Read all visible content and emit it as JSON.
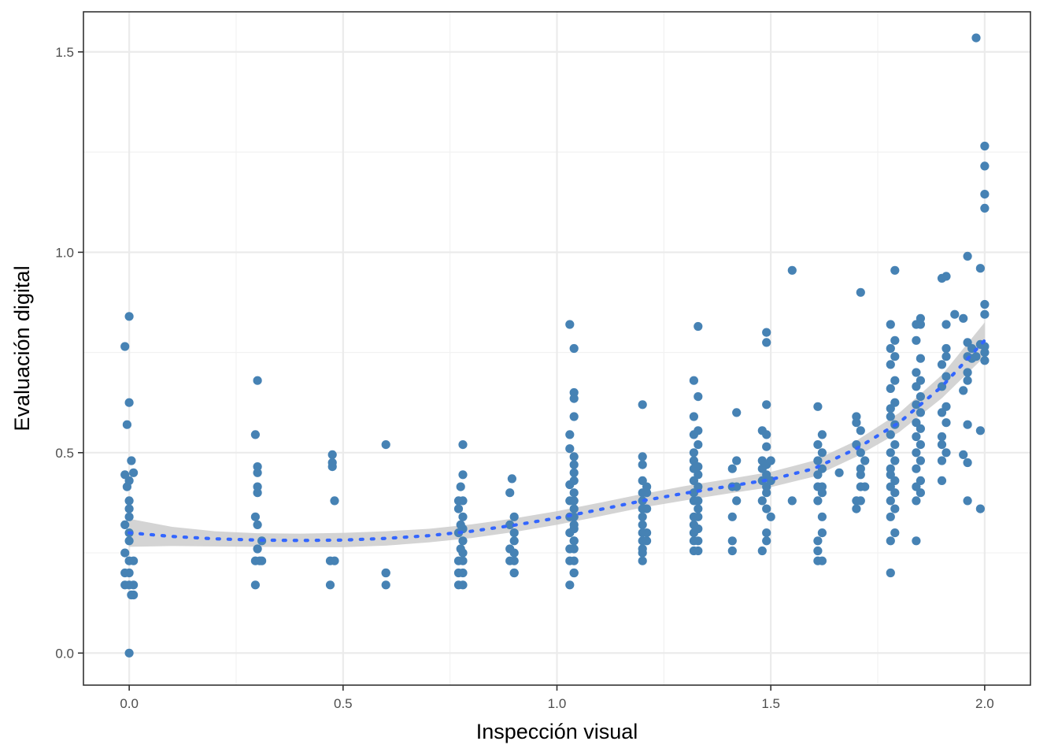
{
  "chart_data": {
    "type": "scatter",
    "title": "",
    "xlabel": "Inspección visual",
    "ylabel": "Evaluación digital",
    "xlim": [
      -0.107,
      2.107
    ],
    "ylim": [
      -0.08,
      1.6
    ],
    "x_ticks": [
      0.0,
      0.5,
      1.0,
      1.5,
      2.0
    ],
    "x_tick_labels": [
      "0.0",
      "0.5",
      "1.0",
      "1.5",
      "2.0"
    ],
    "y_ticks": [
      0.0,
      0.5,
      1.0,
      1.5
    ],
    "y_tick_labels": [
      "0.0",
      "0.5",
      "1.0",
      "1.5"
    ],
    "grid": true,
    "legend": "none",
    "point_color": "#4682b4",
    "smooth_color": "#3366ff",
    "ribbon_color": "#cccccc",
    "points": [
      [
        0.0,
        0.0
      ],
      [
        -0.01,
        0.17
      ],
      [
        0.0,
        0.17
      ],
      [
        0.01,
        0.17
      ],
      [
        0.0,
        0.2
      ],
      [
        -0.01,
        0.2
      ],
      [
        0.01,
        0.145
      ],
      [
        0.005,
        0.145
      ],
      [
        0.0,
        0.23
      ],
      [
        0.01,
        0.23
      ],
      [
        -0.01,
        0.25
      ],
      [
        0.0,
        0.28
      ],
      [
        0.0,
        0.3
      ],
      [
        -0.01,
        0.32
      ],
      [
        0.0,
        0.34
      ],
      [
        0.0,
        0.36
      ],
      [
        0.0,
        0.38
      ],
      [
        -0.005,
        0.415
      ],
      [
        0.0,
        0.43
      ],
      [
        -0.01,
        0.445
      ],
      [
        0.01,
        0.45
      ],
      [
        0.005,
        0.48
      ],
      [
        -0.005,
        0.57
      ],
      [
        0.0,
        0.625
      ],
      [
        -0.01,
        0.765
      ],
      [
        0.0,
        0.84
      ],
      [
        0.295,
        0.17
      ],
      [
        0.295,
        0.23
      ],
      [
        0.305,
        0.23
      ],
      [
        0.31,
        0.23
      ],
      [
        0.3,
        0.26
      ],
      [
        0.31,
        0.28
      ],
      [
        0.3,
        0.32
      ],
      [
        0.295,
        0.34
      ],
      [
        0.3,
        0.4
      ],
      [
        0.3,
        0.415
      ],
      [
        0.3,
        0.45
      ],
      [
        0.3,
        0.465
      ],
      [
        0.295,
        0.545
      ],
      [
        0.3,
        0.68
      ],
      [
        0.47,
        0.17
      ],
      [
        0.47,
        0.23
      ],
      [
        0.48,
        0.23
      ],
      [
        0.48,
        0.38
      ],
      [
        0.475,
        0.465
      ],
      [
        0.475,
        0.475
      ],
      [
        0.475,
        0.495
      ],
      [
        0.6,
        0.17
      ],
      [
        0.6,
        0.2
      ],
      [
        0.6,
        0.2
      ],
      [
        0.6,
        0.52
      ],
      [
        0.77,
        0.17
      ],
      [
        0.78,
        0.17
      ],
      [
        0.78,
        0.2
      ],
      [
        0.77,
        0.2
      ],
      [
        0.78,
        0.23
      ],
      [
        0.77,
        0.23
      ],
      [
        0.78,
        0.25
      ],
      [
        0.775,
        0.26
      ],
      [
        0.78,
        0.28
      ],
      [
        0.77,
        0.3
      ],
      [
        0.78,
        0.31
      ],
      [
        0.775,
        0.32
      ],
      [
        0.78,
        0.34
      ],
      [
        0.77,
        0.36
      ],
      [
        0.78,
        0.38
      ],
      [
        0.77,
        0.38
      ],
      [
        0.775,
        0.415
      ],
      [
        0.78,
        0.445
      ],
      [
        0.78,
        0.52
      ],
      [
        0.9,
        0.2
      ],
      [
        0.9,
        0.2
      ],
      [
        0.89,
        0.23
      ],
      [
        0.9,
        0.23
      ],
      [
        0.9,
        0.25
      ],
      [
        0.89,
        0.26
      ],
      [
        0.9,
        0.28
      ],
      [
        0.9,
        0.3
      ],
      [
        0.89,
        0.32
      ],
      [
        0.9,
        0.34
      ],
      [
        0.89,
        0.4
      ],
      [
        0.895,
        0.435
      ],
      [
        1.03,
        0.17
      ],
      [
        1.04,
        0.2
      ],
      [
        1.04,
        0.2
      ],
      [
        1.03,
        0.23
      ],
      [
        1.04,
        0.23
      ],
      [
        1.04,
        0.26
      ],
      [
        1.03,
        0.26
      ],
      [
        1.04,
        0.28
      ],
      [
        1.04,
        0.28
      ],
      [
        1.03,
        0.3
      ],
      [
        1.04,
        0.31
      ],
      [
        1.04,
        0.32
      ],
      [
        1.03,
        0.34
      ],
      [
        1.04,
        0.34
      ],
      [
        1.04,
        0.36
      ],
      [
        1.03,
        0.38
      ],
      [
        1.04,
        0.38
      ],
      [
        1.04,
        0.4
      ],
      [
        1.03,
        0.42
      ],
      [
        1.04,
        0.43
      ],
      [
        1.04,
        0.45
      ],
      [
        1.04,
        0.47
      ],
      [
        1.04,
        0.49
      ],
      [
        1.03,
        0.51
      ],
      [
        1.03,
        0.545
      ],
      [
        1.04,
        0.59
      ],
      [
        1.04,
        0.635
      ],
      [
        1.04,
        0.65
      ],
      [
        1.04,
        0.76
      ],
      [
        1.03,
        0.82
      ],
      [
        1.2,
        0.23
      ],
      [
        1.2,
        0.25
      ],
      [
        1.2,
        0.26
      ],
      [
        1.21,
        0.28
      ],
      [
        1.2,
        0.28
      ],
      [
        1.2,
        0.3
      ],
      [
        1.21,
        0.3
      ],
      [
        1.2,
        0.32
      ],
      [
        1.2,
        0.34
      ],
      [
        1.21,
        0.36
      ],
      [
        1.2,
        0.36
      ],
      [
        1.2,
        0.38
      ],
      [
        1.21,
        0.4
      ],
      [
        1.2,
        0.4
      ],
      [
        1.21,
        0.415
      ],
      [
        1.2,
        0.43
      ],
      [
        1.2,
        0.47
      ],
      [
        1.2,
        0.49
      ],
      [
        1.2,
        0.62
      ],
      [
        1.32,
        0.255
      ],
      [
        1.33,
        0.255
      ],
      [
        1.32,
        0.28
      ],
      [
        1.33,
        0.28
      ],
      [
        1.32,
        0.3
      ],
      [
        1.33,
        0.31
      ],
      [
        1.32,
        0.32
      ],
      [
        1.33,
        0.34
      ],
      [
        1.32,
        0.34
      ],
      [
        1.33,
        0.36
      ],
      [
        1.32,
        0.38
      ],
      [
        1.33,
        0.38
      ],
      [
        1.32,
        0.4
      ],
      [
        1.33,
        0.415
      ],
      [
        1.32,
        0.43
      ],
      [
        1.33,
        0.445
      ],
      [
        1.32,
        0.46
      ],
      [
        1.33,
        0.465
      ],
      [
        1.32,
        0.48
      ],
      [
        1.32,
        0.5
      ],
      [
        1.33,
        0.52
      ],
      [
        1.32,
        0.545
      ],
      [
        1.33,
        0.555
      ],
      [
        1.32,
        0.59
      ],
      [
        1.33,
        0.64
      ],
      [
        1.32,
        0.68
      ],
      [
        1.33,
        0.815
      ],
      [
        1.41,
        0.255
      ],
      [
        1.41,
        0.28
      ],
      [
        1.41,
        0.34
      ],
      [
        1.42,
        0.38
      ],
      [
        1.41,
        0.415
      ],
      [
        1.42,
        0.415
      ],
      [
        1.41,
        0.46
      ],
      [
        1.42,
        0.48
      ],
      [
        1.42,
        0.6
      ],
      [
        1.48,
        0.255
      ],
      [
        1.49,
        0.28
      ],
      [
        1.49,
        0.3
      ],
      [
        1.5,
        0.34
      ],
      [
        1.49,
        0.36
      ],
      [
        1.48,
        0.38
      ],
      [
        1.49,
        0.4
      ],
      [
        1.49,
        0.415
      ],
      [
        1.48,
        0.43
      ],
      [
        1.5,
        0.43
      ],
      [
        1.49,
        0.445
      ],
      [
        1.48,
        0.46
      ],
      [
        1.49,
        0.47
      ],
      [
        1.5,
        0.48
      ],
      [
        1.48,
        0.48
      ],
      [
        1.49,
        0.515
      ],
      [
        1.49,
        0.545
      ],
      [
        1.48,
        0.555
      ],
      [
        1.49,
        0.62
      ],
      [
        1.49,
        0.775
      ],
      [
        1.49,
        0.8
      ],
      [
        1.55,
        0.38
      ],
      [
        1.55,
        0.955
      ],
      [
        1.61,
        0.23
      ],
      [
        1.62,
        0.23
      ],
      [
        1.61,
        0.255
      ],
      [
        1.61,
        0.28
      ],
      [
        1.62,
        0.3
      ],
      [
        1.62,
        0.34
      ],
      [
        1.61,
        0.38
      ],
      [
        1.62,
        0.4
      ],
      [
        1.61,
        0.415
      ],
      [
        1.62,
        0.415
      ],
      [
        1.61,
        0.445
      ],
      [
        1.62,
        0.46
      ],
      [
        1.61,
        0.48
      ],
      [
        1.62,
        0.5
      ],
      [
        1.61,
        0.52
      ],
      [
        1.62,
        0.545
      ],
      [
        1.61,
        0.615
      ],
      [
        1.66,
        0.45
      ],
      [
        1.7,
        0.36
      ],
      [
        1.7,
        0.38
      ],
      [
        1.71,
        0.38
      ],
      [
        1.71,
        0.415
      ],
      [
        1.72,
        0.415
      ],
      [
        1.71,
        0.445
      ],
      [
        1.71,
        0.46
      ],
      [
        1.72,
        0.48
      ],
      [
        1.71,
        0.5
      ],
      [
        1.7,
        0.52
      ],
      [
        1.71,
        0.555
      ],
      [
        1.7,
        0.575
      ],
      [
        1.7,
        0.59
      ],
      [
        1.71,
        0.9
      ],
      [
        1.78,
        0.2
      ],
      [
        1.78,
        0.28
      ],
      [
        1.79,
        0.3
      ],
      [
        1.78,
        0.34
      ],
      [
        1.79,
        0.36
      ],
      [
        1.78,
        0.38
      ],
      [
        1.79,
        0.4
      ],
      [
        1.78,
        0.415
      ],
      [
        1.79,
        0.43
      ],
      [
        1.78,
        0.445
      ],
      [
        1.78,
        0.46
      ],
      [
        1.79,
        0.48
      ],
      [
        1.78,
        0.5
      ],
      [
        1.79,
        0.52
      ],
      [
        1.78,
        0.545
      ],
      [
        1.79,
        0.57
      ],
      [
        1.78,
        0.59
      ],
      [
        1.78,
        0.61
      ],
      [
        1.79,
        0.625
      ],
      [
        1.78,
        0.66
      ],
      [
        1.79,
        0.68
      ],
      [
        1.78,
        0.72
      ],
      [
        1.79,
        0.74
      ],
      [
        1.78,
        0.76
      ],
      [
        1.79,
        0.78
      ],
      [
        1.78,
        0.82
      ],
      [
        1.79,
        0.955
      ],
      [
        1.84,
        0.28
      ],
      [
        1.84,
        0.38
      ],
      [
        1.85,
        0.4
      ],
      [
        1.84,
        0.415
      ],
      [
        1.85,
        0.43
      ],
      [
        1.84,
        0.46
      ],
      [
        1.85,
        0.48
      ],
      [
        1.84,
        0.5
      ],
      [
        1.85,
        0.52
      ],
      [
        1.84,
        0.54
      ],
      [
        1.85,
        0.56
      ],
      [
        1.84,
        0.575
      ],
      [
        1.85,
        0.6
      ],
      [
        1.84,
        0.62
      ],
      [
        1.85,
        0.64
      ],
      [
        1.84,
        0.665
      ],
      [
        1.85,
        0.68
      ],
      [
        1.84,
        0.7
      ],
      [
        1.85,
        0.735
      ],
      [
        1.84,
        0.78
      ],
      [
        1.85,
        0.82
      ],
      [
        1.84,
        0.82
      ],
      [
        1.85,
        0.835
      ],
      [
        1.9,
        0.43
      ],
      [
        1.9,
        0.48
      ],
      [
        1.91,
        0.5
      ],
      [
        1.9,
        0.52
      ],
      [
        1.9,
        0.54
      ],
      [
        1.91,
        0.575
      ],
      [
        1.9,
        0.6
      ],
      [
        1.91,
        0.615
      ],
      [
        1.9,
        0.665
      ],
      [
        1.91,
        0.69
      ],
      [
        1.9,
        0.72
      ],
      [
        1.91,
        0.74
      ],
      [
        1.91,
        0.76
      ],
      [
        1.91,
        0.82
      ],
      [
        1.93,
        0.845
      ],
      [
        1.9,
        0.935
      ],
      [
        1.91,
        0.94
      ],
      [
        1.96,
        0.38
      ],
      [
        1.96,
        0.475
      ],
      [
        1.95,
        0.495
      ],
      [
        1.96,
        0.57
      ],
      [
        1.95,
        0.655
      ],
      [
        1.96,
        0.68
      ],
      [
        1.96,
        0.7
      ],
      [
        1.97,
        0.735
      ],
      [
        1.96,
        0.74
      ],
      [
        1.97,
        0.76
      ],
      [
        1.96,
        0.775
      ],
      [
        1.95,
        0.835
      ],
      [
        1.96,
        0.99
      ],
      [
        1.99,
        0.36
      ],
      [
        1.99,
        0.555
      ],
      [
        2.0,
        0.73
      ],
      [
        1.98,
        0.74
      ],
      [
        2.0,
        0.75
      ],
      [
        2.0,
        0.765
      ],
      [
        1.99,
        0.77
      ],
      [
        2.0,
        0.845
      ],
      [
        2.0,
        0.87
      ],
      [
        1.99,
        0.96
      ],
      [
        2.0,
        1.11
      ],
      [
        2.0,
        1.145
      ],
      [
        2.0,
        1.215
      ],
      [
        2.0,
        1.265
      ],
      [
        1.98,
        1.535
      ]
    ],
    "smooth_line": {
      "x": [
        0.0,
        0.1,
        0.2,
        0.3,
        0.4,
        0.5,
        0.6,
        0.7,
        0.8,
        0.9,
        1.0,
        1.1,
        1.2,
        1.3,
        1.4,
        1.5,
        1.6,
        1.7,
        1.8,
        1.9,
        2.0
      ],
      "y": [
        0.3,
        0.291,
        0.285,
        0.282,
        0.281,
        0.282,
        0.286,
        0.293,
        0.304,
        0.319,
        0.337,
        0.358,
        0.38,
        0.399,
        0.416,
        0.433,
        0.46,
        0.51,
        0.575,
        0.665,
        0.78
      ],
      "ymin": [
        0.265,
        0.267,
        0.266,
        0.265,
        0.264,
        0.264,
        0.268,
        0.276,
        0.287,
        0.302,
        0.32,
        0.341,
        0.363,
        0.381,
        0.398,
        0.414,
        0.44,
        0.49,
        0.551,
        0.636,
        0.74
      ],
      "ymax": [
        0.335,
        0.315,
        0.304,
        0.299,
        0.298,
        0.3,
        0.304,
        0.31,
        0.321,
        0.336,
        0.354,
        0.375,
        0.397,
        0.417,
        0.434,
        0.452,
        0.48,
        0.53,
        0.599,
        0.694,
        0.825
      ]
    }
  }
}
